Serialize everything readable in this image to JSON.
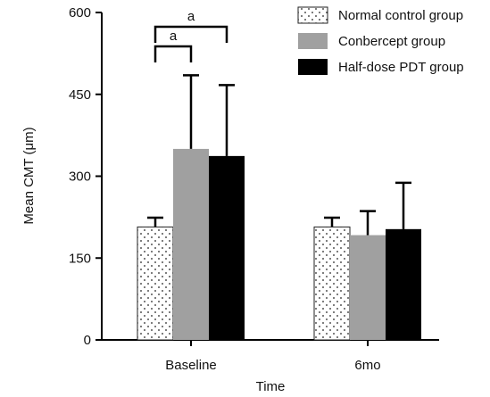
{
  "chart_data": {
    "type": "bar",
    "title": "",
    "xlabel": "Time",
    "ylabel": "Mean CMT (μm)",
    "ylim": [
      0,
      600
    ],
    "yticks": [
      "0",
      "150",
      "300",
      "450",
      "600"
    ],
    "categories": [
      "Baseline",
      "6mo"
    ],
    "series": [
      {
        "name": "Normal control group",
        "pattern": "dots",
        "color": "#ffffff",
        "values": [
          207,
          207
        ],
        "errors": [
          17,
          17
        ]
      },
      {
        "name": "Conbercept group",
        "pattern": "solid",
        "color": "#a0a0a0",
        "values": [
          350,
          192
        ],
        "errors": [
          135,
          44
        ]
      },
      {
        "name": "Half-dose PDT group",
        "pattern": "solid",
        "color": "#000000",
        "values": [
          337,
          203
        ],
        "errors": [
          130,
          85
        ]
      }
    ],
    "significance": [
      {
        "label": "a",
        "from_series": 0,
        "to_series": 1,
        "category": 0,
        "level": "lower"
      },
      {
        "label": "a",
        "from_series": 0,
        "to_series": 2,
        "category": 0,
        "level": "upper"
      }
    ],
    "legend_position": "top-right",
    "grid": false
  }
}
